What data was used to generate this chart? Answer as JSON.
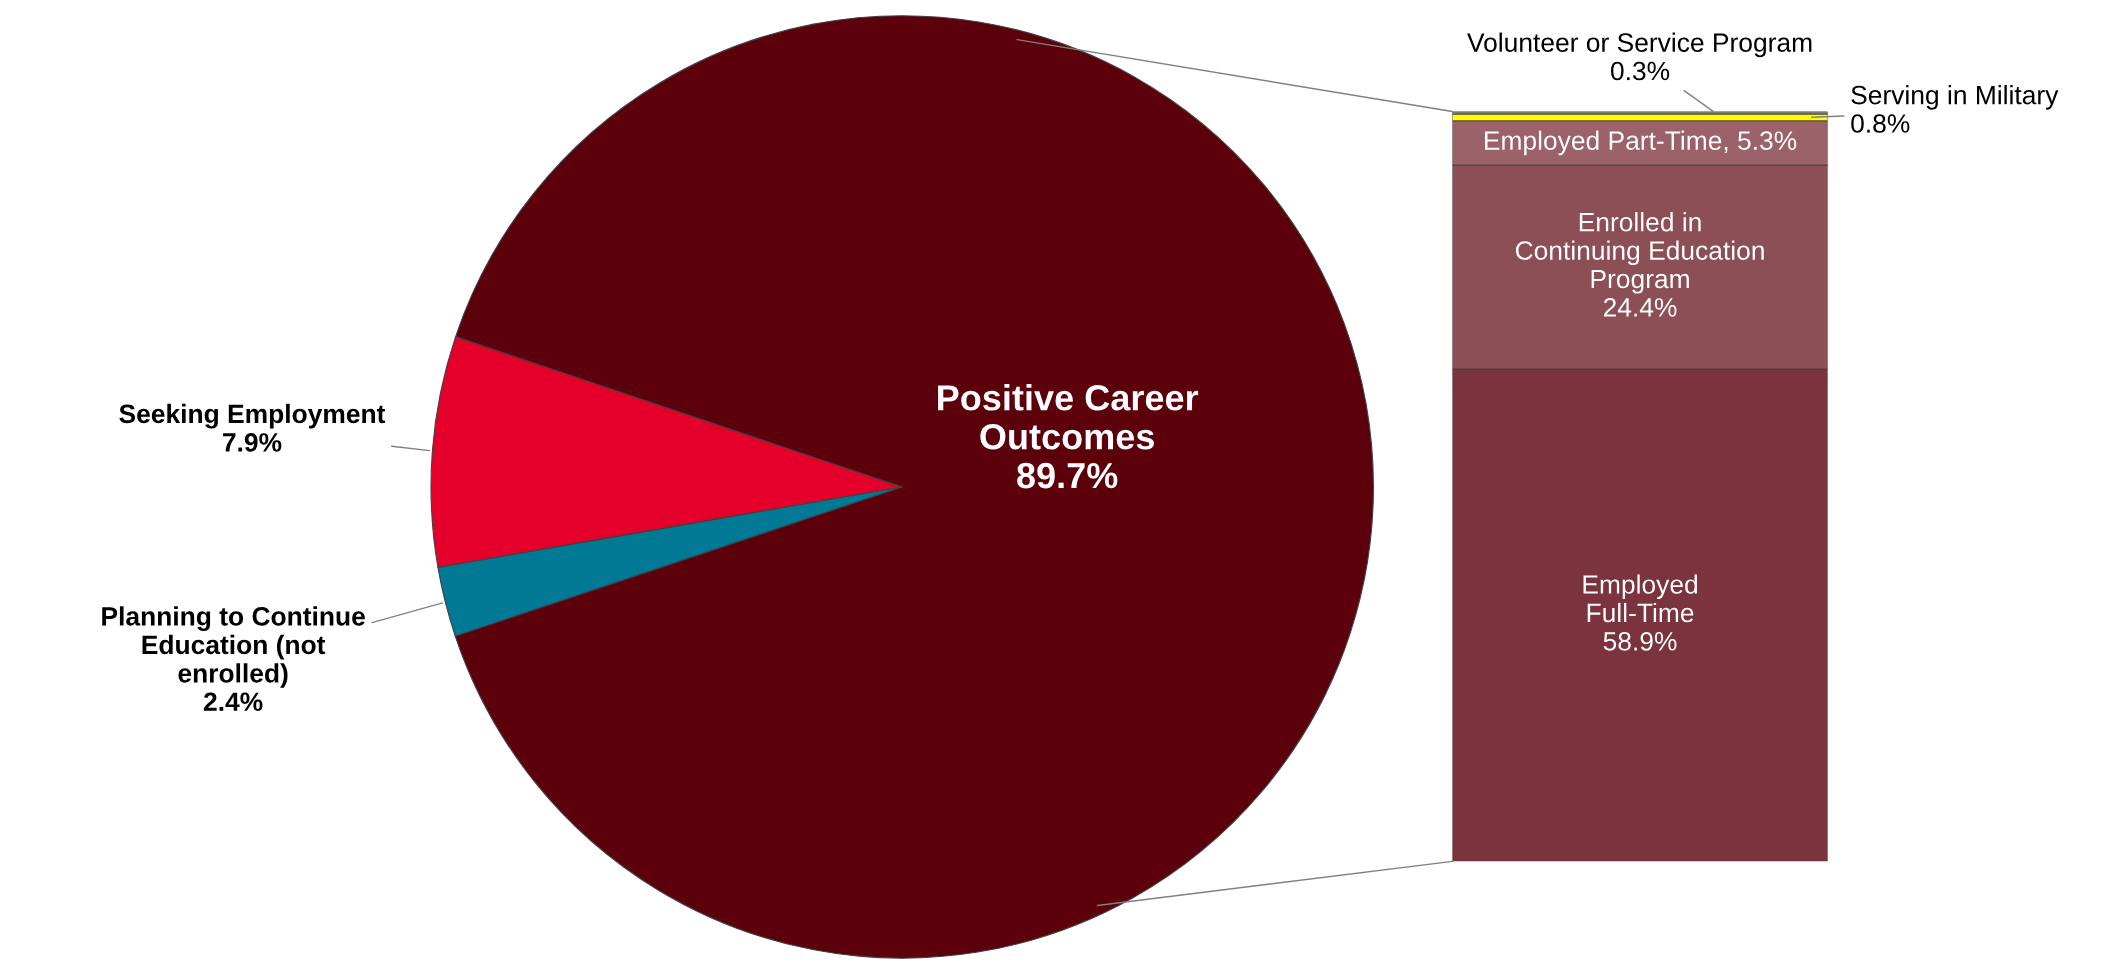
{
  "chart_data": [
    {
      "type": "pie",
      "categories": [
        "Seeking Employment",
        "Planning to Continue\nEducation (not\nenrolled)",
        "Positive Career\nOutcomes"
      ],
      "values": [
        7.9,
        2.4,
        89.7
      ],
      "colors": [
        "#e4002b",
        "#007a94",
        "#5c000c"
      ],
      "value_labels": [
        "7.9%",
        "2.4%",
        "89.7%"
      ]
    },
    {
      "type": "bar",
      "stacked": true,
      "categories": [
        null
      ],
      "series": [
        {
          "name": "Employed\nFull-Time",
          "color": "#7b343d",
          "values": [
            58.9
          ],
          "value_labels": [
            "58.9%"
          ]
        },
        {
          "name": "Enrolled in\nContinuing Education\nProgram",
          "color": "#8b4f55",
          "values": [
            24.4
          ],
          "value_labels": [
            "24.4%"
          ]
        },
        {
          "name": "Employed Part-Time,",
          "color": "#9c6269",
          "values": [
            5.3
          ],
          "value_labels": [
            "5.3%"
          ]
        },
        {
          "name": "Serving in Military",
          "color": "#ffff00",
          "values": [
            0.8
          ],
          "value_labels": [
            "0.8%"
          ]
        },
        {
          "name": "Volunteer or Service Program",
          "color": "#7f7f7f",
          "values": [
            0.3
          ],
          "value_labels": [
            "0.3%"
          ]
        }
      ]
    }
  ]
}
